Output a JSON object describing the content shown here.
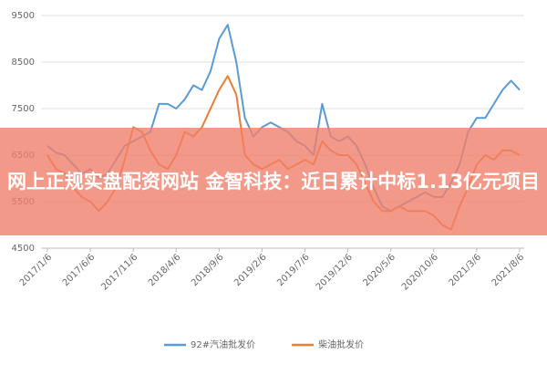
{
  "chart_data": {
    "type": "line",
    "categories": [
      "2017/1/6",
      null,
      null,
      null,
      null,
      "2017/6/6",
      null,
      null,
      null,
      null,
      "2017/11/6",
      null,
      null,
      null,
      null,
      "2018/4/6",
      null,
      null,
      null,
      null,
      "2018/9/6",
      null,
      null,
      null,
      null,
      "2019/2/6",
      null,
      null,
      null,
      null,
      "2019/7/6",
      null,
      null,
      null,
      null,
      "2019/12/6",
      null,
      null,
      null,
      null,
      "2020/5/6",
      null,
      null,
      null,
      null,
      "2020/10/6",
      null,
      null,
      null,
      null,
      "2021/3/6",
      null,
      null,
      null,
      null,
      "2021/8/6"
    ],
    "series": [
      {
        "name": "92#汽油批发价",
        "color": "#5b9bd5",
        "values": [
          6700,
          6550,
          6500,
          6300,
          6100,
          6200,
          6000,
          6100,
          6400,
          6700,
          6800,
          6900,
          7000,
          7600,
          7600,
          7500,
          7700,
          8000,
          7900,
          8300,
          9000,
          9300,
          8500,
          7300,
          6900,
          7100,
          7200,
          7100,
          7000,
          6800,
          6700,
          6500,
          7600,
          6900,
          6800,
          6900,
          6700,
          6300,
          5800,
          5400,
          5300,
          5400,
          5500,
          5600,
          5700,
          5600,
          5600,
          5900,
          6300,
          7000,
          7300,
          7300,
          7600,
          7900,
          8100,
          7900
        ]
      },
      {
        "name": "柴油批发价",
        "color": "#ed7d31",
        "values": [
          6500,
          6200,
          6100,
          5800,
          5600,
          5500,
          5300,
          5500,
          5800,
          6400,
          7100,
          7000,
          6600,
          6300,
          6200,
          6500,
          7000,
          6900,
          7100,
          7500,
          7900,
          8200,
          7800,
          6500,
          6300,
          6200,
          6300,
          6400,
          6200,
          6300,
          6400,
          6300,
          6800,
          6600,
          6500,
          6500,
          6300,
          5900,
          5500,
          5300,
          5300,
          5400,
          5300,
          5300,
          5300,
          5200,
          5000,
          4900,
          5400,
          5800,
          6300,
          6500,
          6400,
          6600,
          6600,
          6500
        ]
      }
    ],
    "ylim": [
      4500,
      9500
    ],
    "yticks": [
      4500,
      5500,
      6500,
      7500,
      8500,
      9500
    ],
    "grid": true,
    "legend": "bottom"
  },
  "banner": {
    "text": "网上正规实盘配资网站 金智科技：近日累计中标1.13亿元项目"
  }
}
